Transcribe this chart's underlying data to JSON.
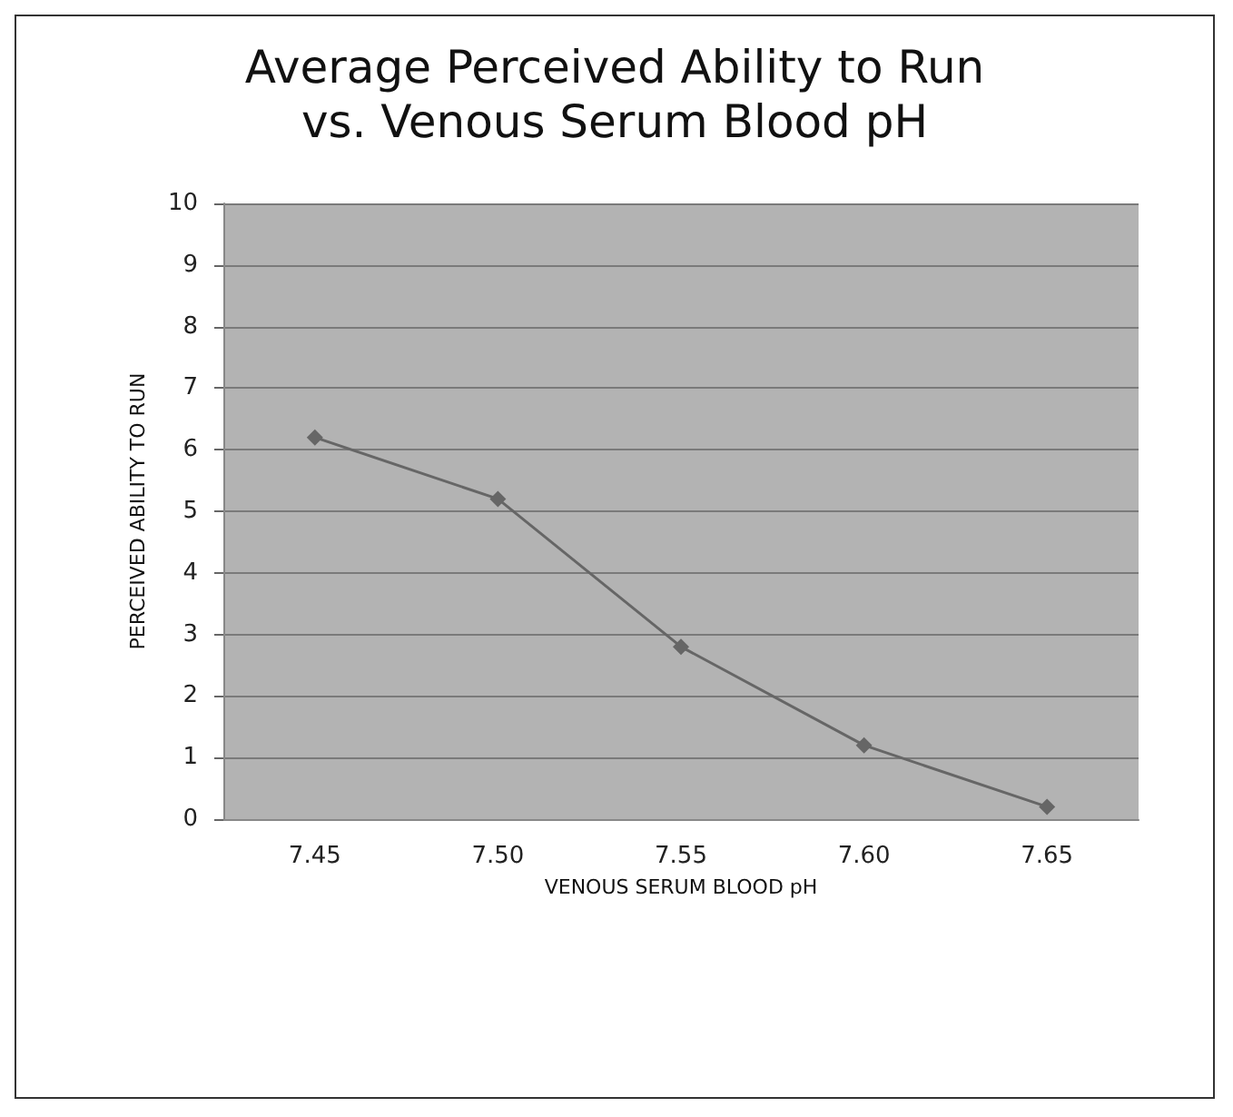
{
  "chart_data": {
    "type": "line",
    "title": "Average Perceived Ability to Run\nvs. Venous Serum Blood pH",
    "xlabel": "VENOUS SERUM BLOOD pH",
    "ylabel": "PERCEIVED ABILITY TO RUN",
    "categories": [
      "7.45",
      "7.50",
      "7.55",
      "7.60",
      "7.65"
    ],
    "series": [
      {
        "color": "#666666",
        "values": [
          6.2,
          5.2,
          2.8,
          1.2,
          0.2
        ]
      }
    ],
    "ylim": [
      0,
      10
    ],
    "yticks": [
      0,
      1,
      2,
      3,
      4,
      5,
      6,
      7,
      8,
      9,
      10
    ],
    "grid": "y",
    "marker": "diamond",
    "line_style": "solid"
  }
}
